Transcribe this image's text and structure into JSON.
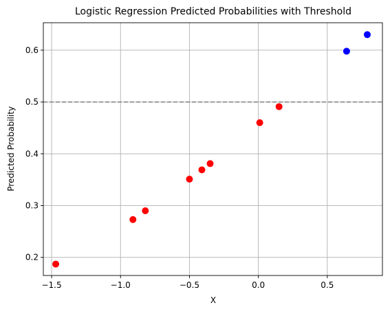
{
  "chart_data": {
    "type": "scatter",
    "title": "Logistic Regression Predicted Probabilities with Threshold",
    "xlabel": "X",
    "ylabel": "Predicted Probability",
    "xlim": [
      -1.56,
      0.9
    ],
    "ylim": [
      0.165,
      0.653
    ],
    "xticks": [
      -1.5,
      -1.0,
      -0.5,
      0.0,
      0.5
    ],
    "xtick_labels": [
      "−1.5",
      "−1.0",
      "−0.5",
      "0.0",
      "0.5"
    ],
    "yticks": [
      0.2,
      0.3,
      0.4,
      0.5,
      0.6
    ],
    "ytick_labels": [
      "0.2",
      "0.3",
      "0.4",
      "0.5",
      "0.6"
    ],
    "grid": true,
    "threshold": {
      "value": 0.5,
      "style": "dashed",
      "color": "#808080"
    },
    "colors": {
      "below_threshold": "#ff0000",
      "above_threshold": "#0000ff"
    },
    "points": [
      {
        "x": -1.47,
        "y": 0.187
      },
      {
        "x": -0.91,
        "y": 0.273
      },
      {
        "x": -0.82,
        "y": 0.29
      },
      {
        "x": -0.5,
        "y": 0.351
      },
      {
        "x": -0.41,
        "y": 0.369
      },
      {
        "x": -0.35,
        "y": 0.381
      },
      {
        "x": 0.01,
        "y": 0.46
      },
      {
        "x": 0.15,
        "y": 0.491
      },
      {
        "x": 0.64,
        "y": 0.598
      },
      {
        "x": 0.79,
        "y": 0.63
      }
    ]
  }
}
